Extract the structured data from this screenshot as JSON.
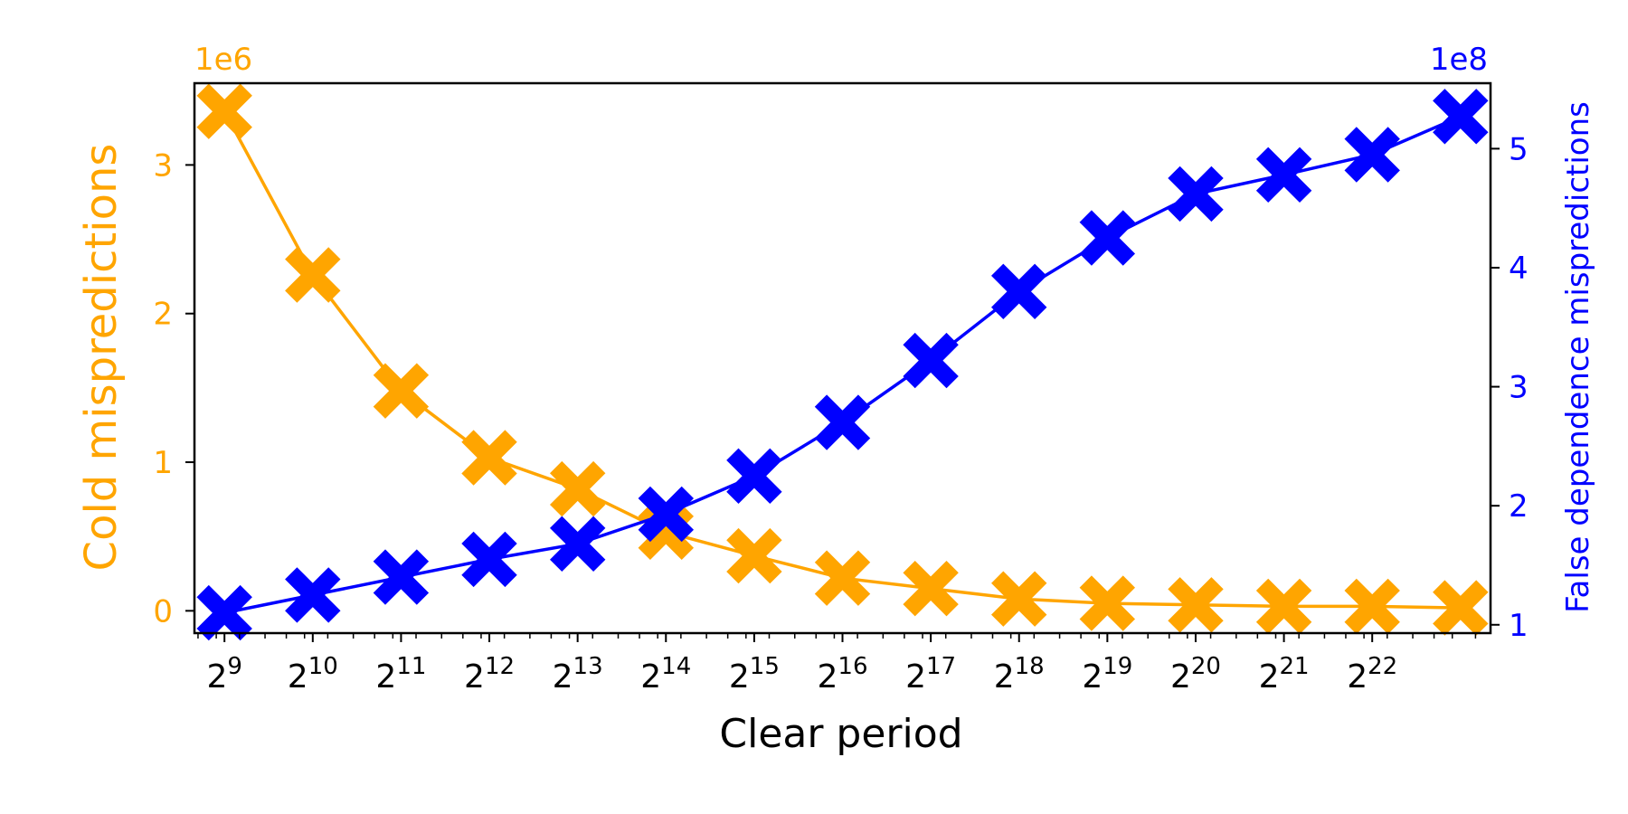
{
  "chart_data": {
    "type": "line",
    "xlabel": "Clear period",
    "x_tick_labels": [
      {
        "base": "2",
        "exp": "9"
      },
      {
        "base": "2",
        "exp": "10"
      },
      {
        "base": "2",
        "exp": "11"
      },
      {
        "base": "2",
        "exp": "12"
      },
      {
        "base": "2",
        "exp": "13"
      },
      {
        "base": "2",
        "exp": "14"
      },
      {
        "base": "2",
        "exp": "15"
      },
      {
        "base": "2",
        "exp": "16"
      },
      {
        "base": "2",
        "exp": "17"
      },
      {
        "base": "2",
        "exp": "18"
      },
      {
        "base": "2",
        "exp": "19"
      },
      {
        "base": "2",
        "exp": "20"
      },
      {
        "base": "2",
        "exp": "21"
      },
      {
        "base": "2",
        "exp": "22"
      }
    ],
    "x_values": [
      9,
      10,
      11,
      12,
      13,
      14,
      15,
      16,
      17,
      18,
      19,
      20,
      21,
      22,
      23
    ],
    "x_scale": "log2",
    "left_axis": {
      "label": "Cold mispredictions",
      "offset_text": "1e6",
      "color": "#FFA500",
      "ylim": [
        -0.15,
        3.55
      ],
      "ticks": [
        0,
        1,
        2,
        3
      ],
      "tick_labels": [
        "0",
        "1",
        "2",
        "3"
      ]
    },
    "right_axis": {
      "label": "False dependence mispredictions",
      "offset_text": "1e8",
      "color": "#0000FF",
      "ylim": [
        0.93,
        5.55
      ],
      "ticks": [
        1,
        2,
        3,
        4,
        5
      ],
      "tick_labels": [
        "1",
        "2",
        "3",
        "4",
        "5"
      ]
    },
    "series": [
      {
        "axis": "left",
        "color": "#FFA500",
        "marker": "X",
        "values": [
          3.36,
          2.26,
          1.48,
          1.03,
          0.82,
          0.53,
          0.37,
          0.22,
          0.15,
          0.08,
          0.05,
          0.04,
          0.03,
          0.03,
          0.02
        ]
      },
      {
        "axis": "right",
        "color": "#0000FF",
        "marker": "X",
        "values": [
          1.1,
          1.25,
          1.4,
          1.55,
          1.68,
          1.93,
          2.25,
          2.7,
          3.22,
          3.8,
          4.25,
          4.62,
          4.78,
          4.95,
          5.27
        ]
      }
    ]
  }
}
